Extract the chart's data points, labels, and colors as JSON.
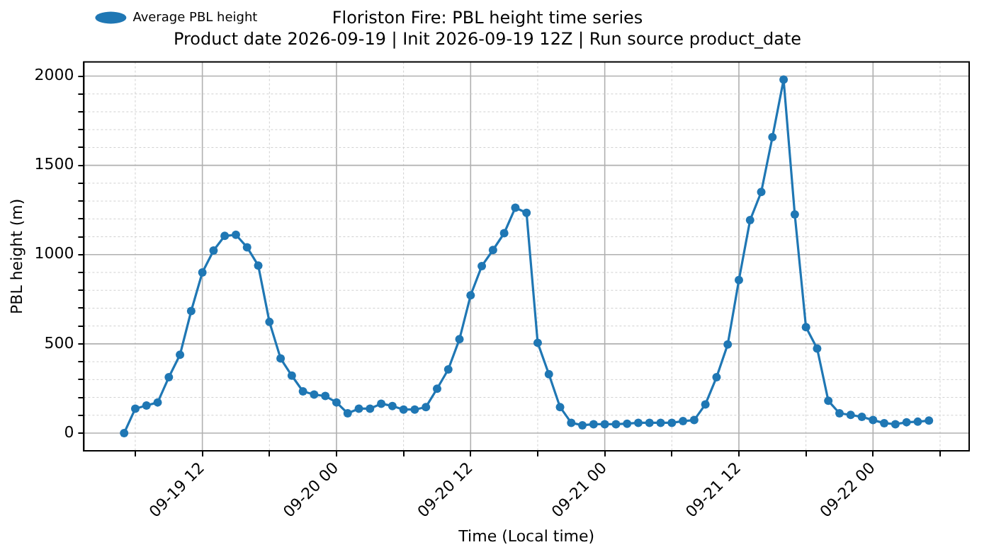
{
  "chart_data": {
    "type": "line",
    "title": "Floriston Fire: PBL height time series",
    "subtitle": "Product date 2026-09-19 | Init 2026-09-19 12Z | Run source product_date",
    "xlabel": "Time (Local time)",
    "ylabel": "PBL height (m)",
    "x": [
      "2026-09-19T05:00",
      "2026-09-19T06:00",
      "2026-09-19T07:00",
      "2026-09-19T08:00",
      "2026-09-19T09:00",
      "2026-09-19T10:00",
      "2026-09-19T11:00",
      "2026-09-19T12:00",
      "2026-09-19T13:00",
      "2026-09-19T14:00",
      "2026-09-19T15:00",
      "2026-09-19T16:00",
      "2026-09-19T17:00",
      "2026-09-19T18:00",
      "2026-09-19T19:00",
      "2026-09-19T20:00",
      "2026-09-19T21:00",
      "2026-09-19T22:00",
      "2026-09-19T23:00",
      "2026-09-20T00:00",
      "2026-09-20T01:00",
      "2026-09-20T02:00",
      "2026-09-20T03:00",
      "2026-09-20T04:00",
      "2026-09-20T05:00",
      "2026-09-20T06:00",
      "2026-09-20T07:00",
      "2026-09-20T08:00",
      "2026-09-20T09:00",
      "2026-09-20T10:00",
      "2026-09-20T11:00",
      "2026-09-20T12:00",
      "2026-09-20T13:00",
      "2026-09-20T14:00",
      "2026-09-20T15:00",
      "2026-09-20T16:00",
      "2026-09-20T17:00",
      "2026-09-20T18:00",
      "2026-09-20T19:00",
      "2026-09-20T20:00",
      "2026-09-20T21:00",
      "2026-09-20T22:00",
      "2026-09-20T23:00",
      "2026-09-21T00:00",
      "2026-09-21T01:00",
      "2026-09-21T02:00",
      "2026-09-21T03:00",
      "2026-09-21T04:00",
      "2026-09-21T05:00",
      "2026-09-21T06:00",
      "2026-09-21T07:00",
      "2026-09-21T08:00",
      "2026-09-21T09:00",
      "2026-09-21T10:00",
      "2026-09-21T11:00",
      "2026-09-21T12:00",
      "2026-09-21T13:00",
      "2026-09-21T14:00",
      "2026-09-21T15:00",
      "2026-09-21T16:00",
      "2026-09-21T17:00",
      "2026-09-21T18:00",
      "2026-09-21T19:00",
      "2026-09-21T20:00",
      "2026-09-21T21:00",
      "2026-09-21T22:00",
      "2026-09-21T23:00",
      "2026-09-22T00:00",
      "2026-09-22T01:00",
      "2026-09-22T02:00",
      "2026-09-22T03:00",
      "2026-09-22T04:00",
      "2026-09-22T05:00"
    ],
    "series": [
      {
        "name": "Average PBL height",
        "color": "#1f77b4",
        "values": [
          0,
          137,
          155,
          172,
          313,
          439,
          684,
          900,
          1023,
          1105,
          1111,
          1041,
          939,
          623,
          418,
          322,
          234,
          216,
          208,
          172,
          111,
          137,
          137,
          165,
          152,
          132,
          132,
          146,
          249,
          357,
          526,
          772,
          936,
          1026,
          1120,
          1263,
          1234,
          506,
          330,
          146,
          58,
          44,
          50,
          50,
          50,
          53,
          58,
          58,
          58,
          58,
          67,
          73,
          161,
          313,
          497,
          857,
          1193,
          1351,
          1658,
          1980,
          1225,
          594,
          474,
          181,
          111,
          102,
          91,
          73,
          56,
          50,
          61,
          64,
          70
        ]
      }
    ],
    "xlim": [
      "2026-09-19T01:24",
      "2026-09-22T08:36"
    ],
    "xticks": [
      {
        "value": "2026-09-19T06:00",
        "label": null
      },
      {
        "value": "2026-09-19T12:00",
        "label": "09-19 12"
      },
      {
        "value": "2026-09-19T18:00",
        "label": null
      },
      {
        "value": "2026-09-20T00:00",
        "label": "09-20 00"
      },
      {
        "value": "2026-09-20T06:00",
        "label": null
      },
      {
        "value": "2026-09-20T12:00",
        "label": "09-20 12"
      },
      {
        "value": "2026-09-20T18:00",
        "label": null
      },
      {
        "value": "2026-09-21T00:00",
        "label": "09-21 00"
      },
      {
        "value": "2026-09-21T06:00",
        "label": null
      },
      {
        "value": "2026-09-21T12:00",
        "label": "09-21 12"
      },
      {
        "value": "2026-09-21T18:00",
        "label": null
      },
      {
        "value": "2026-09-22T00:00",
        "label": "09-22 00"
      },
      {
        "value": "2026-09-22T06:00",
        "label": null
      }
    ],
    "ylim": [
      -99,
      2079
    ],
    "yticks": [
      0,
      {
        "value": 100,
        "label": null
      },
      {
        "value": 200,
        "label": null
      },
      {
        "value": 300,
        "label": null
      },
      {
        "value": 400,
        "label": null
      },
      500,
      {
        "value": 600,
        "label": null
      },
      {
        "value": 700,
        "label": null
      },
      {
        "value": 800,
        "label": null
      },
      {
        "value": 900,
        "label": null
      },
      1000,
      {
        "value": 1100,
        "label": null
      },
      {
        "value": 1200,
        "label": null
      },
      {
        "value": 1300,
        "label": null
      },
      {
        "value": 1400,
        "label": null
      },
      1500,
      {
        "value": 1600,
        "label": null
      },
      {
        "value": 1700,
        "label": null
      },
      {
        "value": 1800,
        "label": null
      },
      {
        "value": 1900,
        "label": null
      },
      2000
    ],
    "grid": true,
    "legend": "top left",
    "marker": "circle",
    "line_style": "solid"
  }
}
